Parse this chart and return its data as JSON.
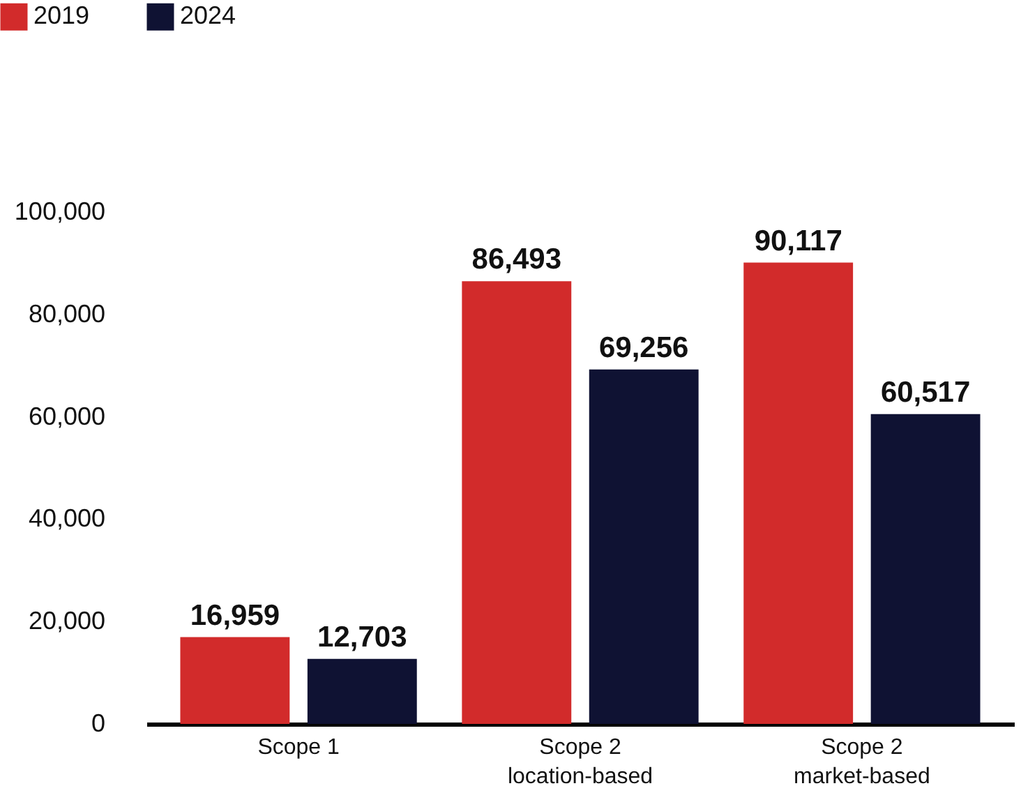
{
  "chart_data": {
    "type": "bar",
    "categories": [
      "Scope 1",
      "Scope 2\nlocation-based",
      "Scope 2\nmarket-based"
    ],
    "series": [
      {
        "name": "2019",
        "color": "#d22b2b",
        "values": [
          16959,
          86493,
          90117
        ],
        "value_labels": [
          "16,959",
          "86,493",
          "90,117"
        ]
      },
      {
        "name": "2024",
        "color": "#0f1233",
        "values": [
          12703,
          69256,
          60517
        ],
        "value_labels": [
          "12,703",
          "69,256",
          "60,517"
        ]
      }
    ],
    "ylim": [
      0,
      100000
    ],
    "yticks": [
      {
        "value": 0,
        "label": "0"
      },
      {
        "value": 20000,
        "label": "20,000"
      },
      {
        "value": 40000,
        "label": "40,000"
      },
      {
        "value": 60000,
        "label": "60,000"
      },
      {
        "value": 80000,
        "label": "80,000"
      },
      {
        "value": 100000,
        "label": "100,000"
      }
    ],
    "legend": "top left"
  }
}
